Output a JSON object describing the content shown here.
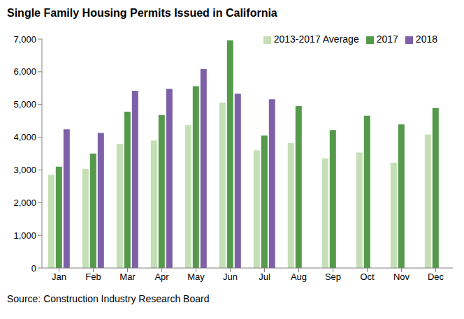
{
  "chart_data": {
    "type": "bar",
    "title": "Single Family Housing Permits Issued in California",
    "source": "Source: Construction Industry Research Board",
    "categories": [
      "Jan",
      "Feb",
      "Mar",
      "Apr",
      "May",
      "Jun",
      "Jul",
      "Aug",
      "Sep",
      "Oct",
      "Nov",
      "Dec"
    ],
    "series": [
      {
        "name": "2013-2017 Average",
        "color": "#c4dfb5",
        "values": [
          2850,
          3030,
          3800,
          3900,
          4370,
          5060,
          3600,
          3820,
          3350,
          3530,
          3220,
          4080
        ]
      },
      {
        "name": "2017",
        "color": "#559a4b",
        "values": [
          3100,
          3500,
          4780,
          4680,
          5560,
          6960,
          4050,
          4950,
          4220,
          4660,
          4390,
          4890
        ]
      },
      {
        "name": "2018",
        "color": "#7e60a8",
        "values": [
          4240,
          4130,
          5420,
          5480,
          6080,
          5330,
          5160,
          null,
          null,
          null,
          null,
          null
        ]
      }
    ],
    "ylim": [
      0,
      7000
    ],
    "yticks": [
      0,
      {
        "value": 1000,
        "label": "1,000"
      },
      {
        "value": 2000,
        "label": "2,000"
      },
      {
        "value": 3000,
        "label": "3,000"
      },
      {
        "value": 4000,
        "label": "4,000"
      },
      {
        "value": 5000,
        "label": "5,000"
      },
      {
        "value": 6000,
        "label": "6,000"
      },
      {
        "value": 7000,
        "label": "7,000"
      }
    ],
    "grid": false,
    "legend": "upper right"
  }
}
